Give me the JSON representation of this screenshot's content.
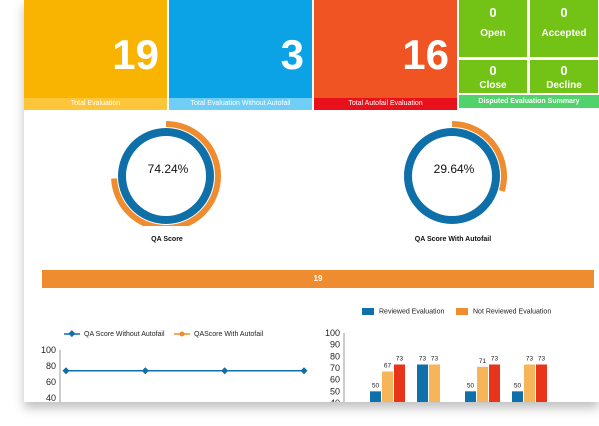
{
  "tiles": [
    {
      "value": "19",
      "label": "Total Evaluation"
    },
    {
      "value": "3",
      "label": "Total Evaluation Without Autofail"
    },
    {
      "value": "16",
      "label": "Total Autofail Evaluation"
    }
  ],
  "disputed": {
    "open": {
      "value": "0",
      "label": "Open"
    },
    "accepted": {
      "value": "0",
      "label": "Accepted"
    },
    "close": {
      "value": "0",
      "label": "Close"
    },
    "decline": {
      "value": "0",
      "label": "Decline"
    },
    "title": "Disputed Evaluation Summary"
  },
  "gauges": [
    {
      "text": "74.24%",
      "title": "QA Score",
      "value": 74.24
    },
    {
      "text": "29.64%",
      "title": "QA Score With Autofail",
      "value": 29.64
    }
  ],
  "banner": "19",
  "colors": {
    "blue": "#0f6fa8",
    "orange": "#f08c30",
    "light_orange": "#f7b55a",
    "red": "#e8341a"
  },
  "chart_data": [
    {
      "type": "line",
      "series": [
        {
          "name": "QA Score Without Autofail",
          "values": [
            74,
            74,
            74,
            74
          ]
        },
        {
          "name": "QAScore With Autofail",
          "values": [
            null,
            null,
            null,
            null
          ]
        }
      ],
      "ylim": [
        40,
        100
      ],
      "yticks": [
        "100",
        "80",
        "60",
        "40"
      ]
    },
    {
      "type": "bar",
      "series": [
        {
          "name": "Reviewed Evaluation",
          "values": [
            50,
            73,
            50,
            50
          ]
        },
        {
          "name": "Not Reviewed Evaluation",
          "values": [
            67,
            73,
            71,
            73
          ]
        },
        {
          "name": "",
          "values": [
            73,
            null,
            73,
            73
          ]
        }
      ],
      "ylim": [
        40,
        100
      ],
      "yticks": [
        "100",
        "90",
        "80",
        "70",
        "60",
        "50",
        "40"
      ]
    }
  ]
}
